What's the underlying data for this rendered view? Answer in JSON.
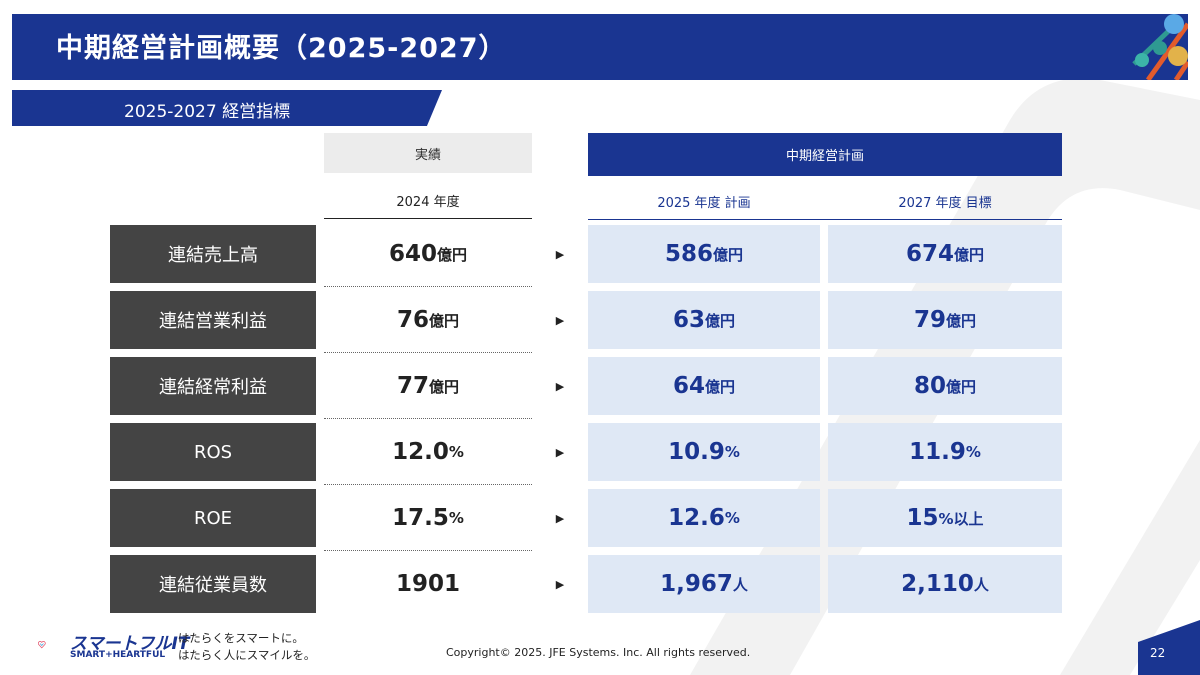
{
  "header": {
    "title": "中期経営計画概要（2025-2027）"
  },
  "subheader": {
    "title": "2025-2027 経営指標"
  },
  "columns": {
    "actual_group": "実績",
    "plan_group": "中期経営計画",
    "actual_year": "2024 年度",
    "plan_year_1": "2025 年度 計画",
    "plan_year_2": "2027 年度 目標"
  },
  "rows": [
    {
      "label": "連結売上高",
      "actual": {
        "num": "640",
        "unit": "億円"
      },
      "plan2025": {
        "num": "586",
        "unit": "億円"
      },
      "target2027": {
        "num": "674",
        "unit": "億円"
      }
    },
    {
      "label": "連結営業利益",
      "actual": {
        "num": "76",
        "unit": "億円"
      },
      "plan2025": {
        "num": "63",
        "unit": "億円"
      },
      "target2027": {
        "num": "79",
        "unit": "億円"
      }
    },
    {
      "label": "連結経常利益",
      "actual": {
        "num": "77",
        "unit": "億円"
      },
      "plan2025": {
        "num": "64",
        "unit": "億円"
      },
      "target2027": {
        "num": "80",
        "unit": "億円"
      }
    },
    {
      "label": "ROS",
      "actual": {
        "num": "12.0",
        "unit": "%"
      },
      "plan2025": {
        "num": "10.9",
        "unit": "%"
      },
      "target2027": {
        "num": "11.9",
        "unit": "%"
      }
    },
    {
      "label": "ROE",
      "actual": {
        "num": "17.5",
        "unit": "%"
      },
      "plan2025": {
        "num": "12.6",
        "unit": "%"
      },
      "target2027": {
        "num": "15",
        "unit": "%以上"
      }
    },
    {
      "label": "連結従業員数",
      "actual": {
        "num": "1901",
        "unit": ""
      },
      "plan2025": {
        "num": "1,967",
        "unit": "人"
      },
      "target2027": {
        "num": "2,110",
        "unit": "人"
      }
    }
  ],
  "arrow_glyph": "▶",
  "footer": {
    "logo_text": "スマートフルIT",
    "logo_sub": "SMART+HEARTFUL",
    "tagline_1": "はたらくをスマートに。",
    "tagline_2": "はたらく人にスマイルを。",
    "copyright": "Copyright© 2025. JFE Systems. Inc. All rights reserved.",
    "page_number": "22"
  },
  "colors": {
    "primary": "#1a3591",
    "label_bg": "#444444",
    "plan_bg": "#dfe8f5",
    "actual_hdr_bg": "#ececec"
  }
}
